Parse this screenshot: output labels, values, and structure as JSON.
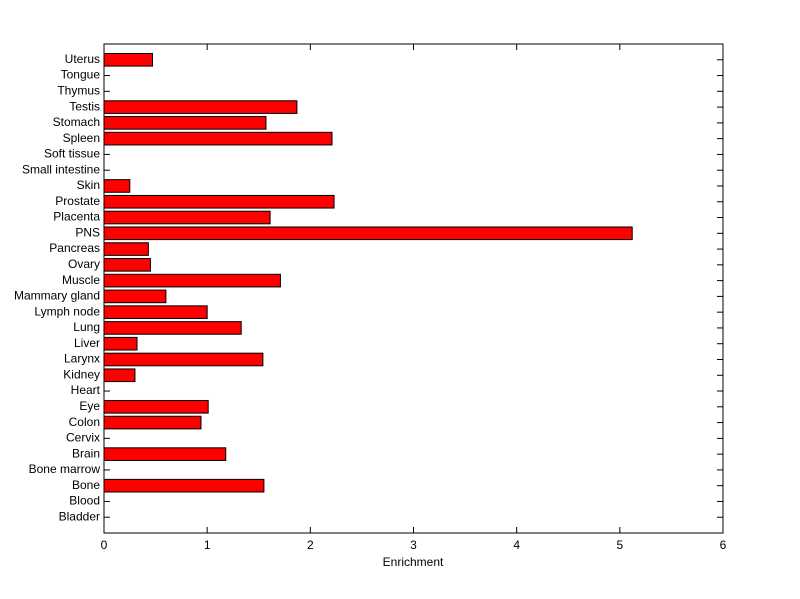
{
  "chart_data": {
    "type": "barh",
    "xlabel": "Enrichment",
    "categories": [
      "Bladder",
      "Blood",
      "Bone",
      "Bone marrow",
      "Brain",
      "Cervix",
      "Colon",
      "Eye",
      "Heart",
      "Kidney",
      "Larynx",
      "Liver",
      "Lung",
      "Lymph node",
      "Mammary gland",
      "Muscle",
      "Ovary",
      "Pancreas",
      "PNS",
      "Placenta",
      "Prostate",
      "Skin",
      "Small intestine",
      "Soft tissue",
      "Spleen",
      "Stomach",
      "Testis",
      "Thymus",
      "Tongue",
      "Uterus"
    ],
    "values": [
      0,
      0,
      1.55,
      0,
      1.18,
      0,
      0.94,
      1.01,
      0,
      0.3,
      1.54,
      0.32,
      1.33,
      1.0,
      0.6,
      1.71,
      0.45,
      0.43,
      5.12,
      1.61,
      2.23,
      0.25,
      0,
      0,
      2.21,
      1.57,
      1.87,
      0,
      0,
      0.47
    ],
    "color": "#ff0000",
    "xlim": [
      0,
      6
    ],
    "xticks": [
      0,
      1,
      2,
      3,
      4,
      5,
      6
    ]
  }
}
